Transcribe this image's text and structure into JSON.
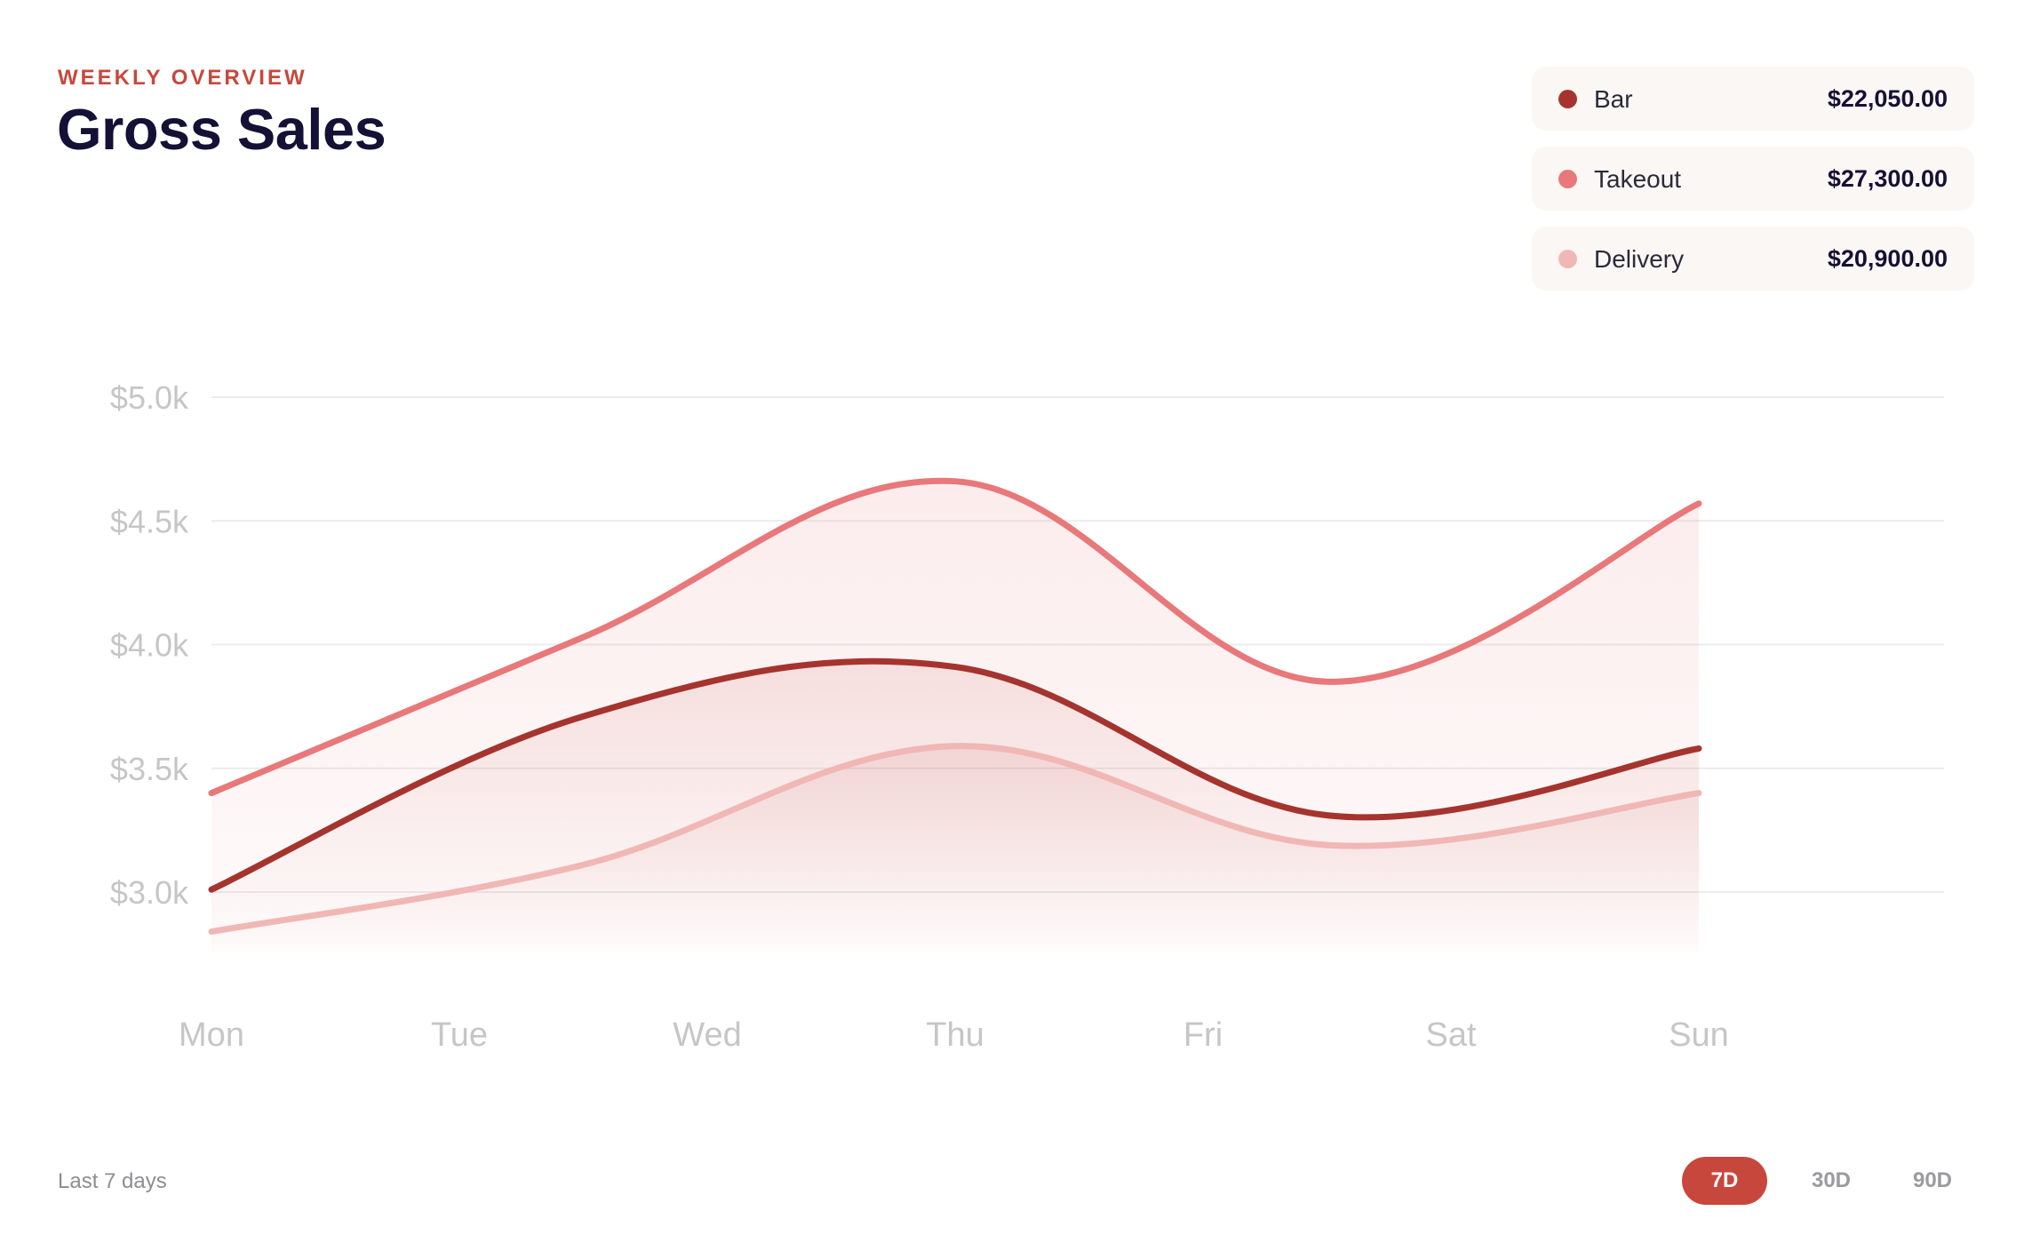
{
  "header": {
    "eyebrow": "WEEKLY OVERVIEW",
    "title": "Gross Sales"
  },
  "legend": [
    {
      "name": "Bar",
      "value": "$22,050.00",
      "color": "#a5342e"
    },
    {
      "name": "Takeout",
      "value": "$27,300.00",
      "color": "#e8787a"
    },
    {
      "name": "Delivery",
      "value": "$20,900.00",
      "color": "#f0b7b5"
    }
  ],
  "footer": {
    "note": "Last 7 days",
    "ranges": [
      {
        "label": "7D",
        "active": true
      },
      {
        "label": "30D",
        "active": false
      },
      {
        "label": "90D",
        "active": false
      }
    ]
  },
  "colors": {
    "accent": "#c8473d",
    "grid": "#ececec",
    "tick": "#c6c6c6"
  },
  "chart_data": {
    "type": "area",
    "categories": [
      "Mon",
      "Tue",
      "Wed",
      "Thu",
      "Fri",
      "Sat",
      "Sun"
    ],
    "yticks": [
      "$3.0k",
      "$3.5k",
      "$4.0k",
      "$4.5k",
      "$5.0k"
    ],
    "ytick_values": [
      3000,
      3500,
      4000,
      4500,
      5000
    ],
    "ylim": [
      2750,
      5000
    ],
    "grid": true,
    "legend_position": "top-right",
    "x": [
      0,
      1.5,
      3,
      4.5,
      6
    ],
    "series": [
      {
        "name": "Takeout",
        "color": "#e8787a",
        "values": [
          3400,
          4030,
          4660,
          3850,
          4570
        ]
      },
      {
        "name": "Bar",
        "color": "#a5342e",
        "values": [
          3010,
          3710,
          3910,
          3310,
          3580
        ]
      },
      {
        "name": "Delivery",
        "color": "#f0b7b5",
        "values": [
          2840,
          3110,
          3590,
          3190,
          3400
        ]
      }
    ]
  }
}
